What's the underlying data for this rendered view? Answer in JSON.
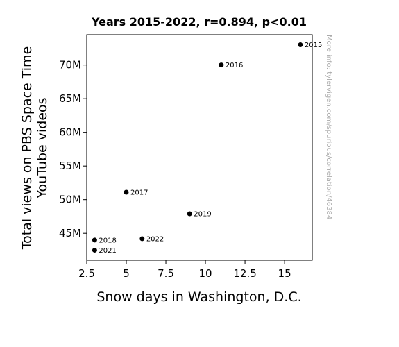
{
  "chart_data": {
    "type": "scatter",
    "title": "Years 2015-2022, r=0.894, p<0.01",
    "xlabel": "Snow days in Washington, D.C.",
    "ylabel_lines": [
      "Total views on PBS Space Time",
      "YouTube videos"
    ],
    "xlim": [
      2.5,
      16.75
    ],
    "ylim": [
      41000000,
      74500000
    ],
    "xticks": [
      2.5,
      5,
      7.5,
      10,
      12.5,
      15
    ],
    "xtick_labels": [
      "2.5",
      "5",
      "7.5",
      "10",
      "12.5",
      "15"
    ],
    "yticks": [
      45000000,
      50000000,
      55000000,
      60000000,
      65000000,
      70000000
    ],
    "ytick_labels": [
      "45M",
      "50M",
      "55M",
      "60M",
      "65M",
      "70M"
    ],
    "grid": false,
    "points": [
      {
        "label": "2015",
        "x": 16,
        "y": 73000000
      },
      {
        "label": "2016",
        "x": 11,
        "y": 70000000
      },
      {
        "label": "2017",
        "x": 5,
        "y": 51100000
      },
      {
        "label": "2018",
        "x": 3,
        "y": 44000000
      },
      {
        "label": "2019",
        "x": 9,
        "y": 47900000
      },
      {
        "label": "2021",
        "x": 3,
        "y": 42500000
      },
      {
        "label": "2022",
        "x": 6,
        "y": 44200000
      }
    ],
    "marker_color": "#000000"
  },
  "watermark": "More info: tylervigen.com/spurious/correlation/46384"
}
